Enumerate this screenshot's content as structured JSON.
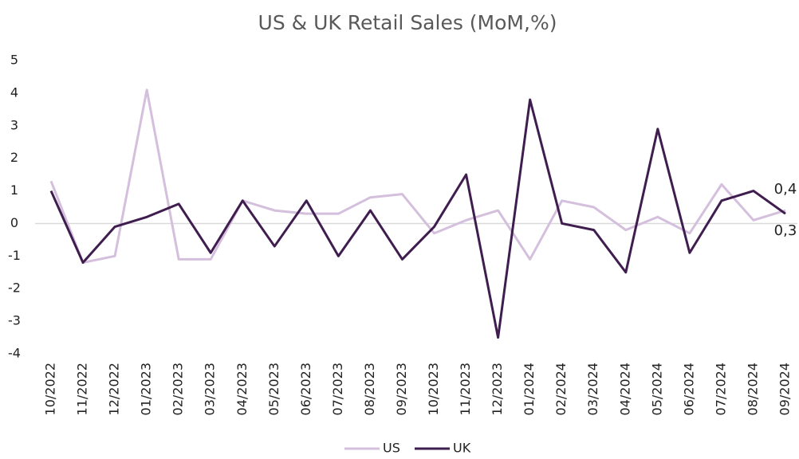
{
  "chart_data": {
    "type": "line",
    "title": "US & UK Retail Sales (MoM,%)",
    "categories": [
      "10/2022",
      "11/2022",
      "12/2022",
      "01/2023",
      "02/2023",
      "03/2023",
      "04/2023",
      "05/2023",
      "06/2023",
      "07/2023",
      "08/2023",
      "09/2023",
      "10/2023",
      "11/2023",
      "12/2023",
      "01/2024",
      "02/2024",
      "03/2024",
      "04/2024",
      "05/2024",
      "06/2024",
      "07/2024",
      "08/2024",
      "09/2024"
    ],
    "series": [
      {
        "name": "US",
        "color": "#d4bfdd",
        "values": [
          1.3,
          -1.2,
          -1.0,
          4.1,
          -1.1,
          -1.1,
          0.7,
          0.4,
          0.3,
          0.3,
          0.8,
          0.9,
          -0.3,
          0.1,
          0.4,
          -1.1,
          0.7,
          0.5,
          -0.2,
          0.2,
          -0.3,
          1.2,
          0.1,
          0.4
        ],
        "value_labels": [
          null,
          null,
          null,
          null,
          null,
          null,
          null,
          null,
          null,
          null,
          null,
          null,
          null,
          null,
          null,
          null,
          null,
          null,
          null,
          null,
          null,
          null,
          null,
          "0,4"
        ]
      },
      {
        "name": "UK",
        "color": "#3f1d4f",
        "values": [
          1.0,
          -1.2,
          -0.1,
          0.2,
          0.6,
          -0.9,
          0.7,
          -0.7,
          0.7,
          -1.0,
          0.4,
          -1.1,
          -0.1,
          1.5,
          -3.5,
          3.8,
          0.0,
          -0.2,
          -1.5,
          2.9,
          -0.9,
          0.7,
          1.0,
          0.3
        ],
        "value_labels": [
          null,
          null,
          null,
          null,
          null,
          null,
          null,
          null,
          null,
          null,
          null,
          null,
          null,
          null,
          null,
          null,
          null,
          null,
          null,
          null,
          null,
          null,
          null,
          "0,3"
        ]
      }
    ],
    "ylim": [
      -4,
      5
    ],
    "yticks": [
      -4,
      -3,
      -2,
      -1,
      0,
      1,
      2,
      3,
      4,
      5
    ],
    "grid": false,
    "legend": "bottom"
  }
}
